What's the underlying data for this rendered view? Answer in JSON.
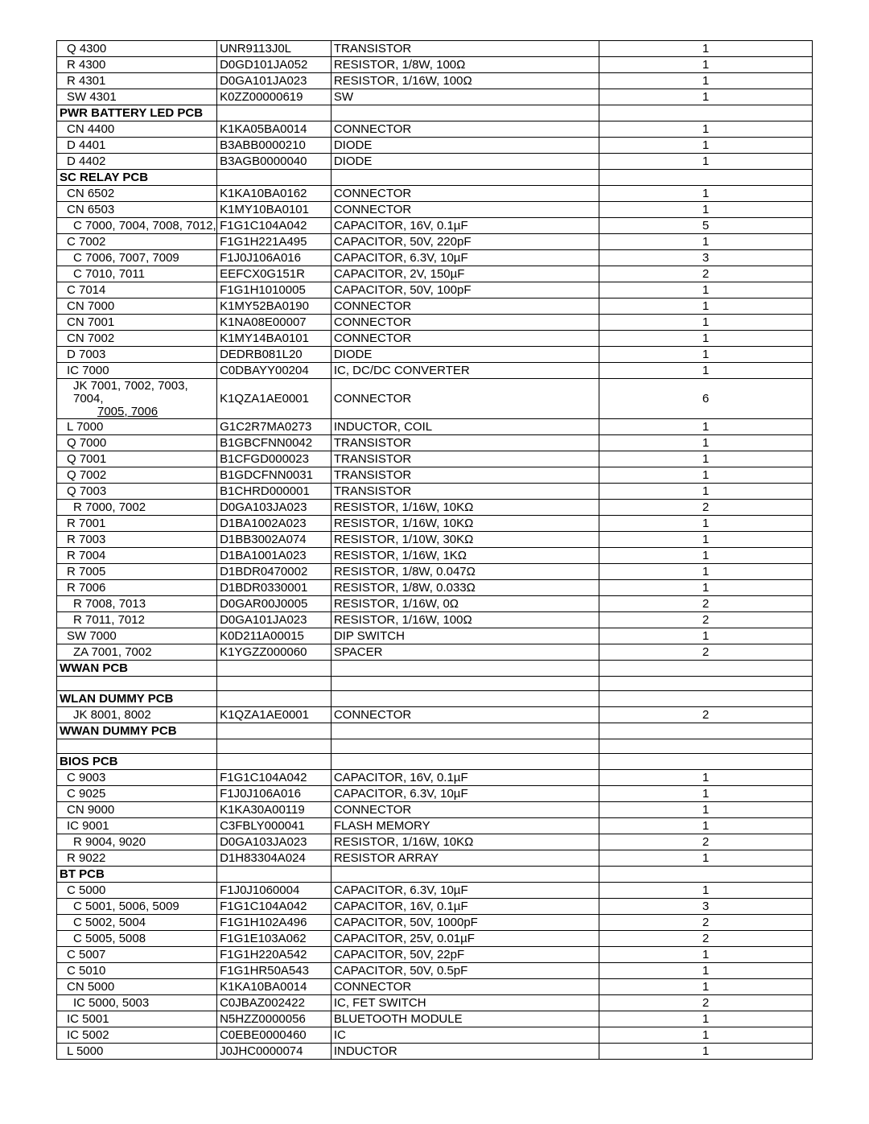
{
  "table": {
    "border_color": "#000000",
    "background_color": "#ffffff",
    "font_size": 15,
    "rows": [
      {
        "style": "part",
        "ref": "Q 4300",
        "pn": "UNR9113J0L",
        "desc": "TRANSISTOR",
        "qty": "1"
      },
      {
        "style": "part",
        "ref": "R 4300",
        "pn": "D0GD101JA052",
        "desc": "RESISTOR,  1/8W, 100Ω",
        "qty": "1"
      },
      {
        "style": "part",
        "ref": "R 4301",
        "pn": "D0GA101JA023",
        "desc": "RESISTOR,  1/16W, 100Ω",
        "qty": "1"
      },
      {
        "style": "part",
        "ref": "SW 4301",
        "pn": "K0ZZ00000619",
        "desc": "SW",
        "qty": "1"
      },
      {
        "style": "section",
        "ref": "PWR BATTERY LED PCB",
        "pn": "",
        "desc": "",
        "qty": ""
      },
      {
        "style": "part",
        "ref": "CN 4400",
        "pn": "K1KA05BA0014",
        "desc": "CONNECTOR",
        "qty": "1"
      },
      {
        "style": "part",
        "ref": "D 4401",
        "pn": "B3ABB0000210",
        "desc": "DIODE",
        "qty": "1"
      },
      {
        "style": "part",
        "ref": "D 4402",
        "pn": "B3AGB0000040",
        "desc": "DIODE",
        "qty": "1"
      },
      {
        "style": "section",
        "ref": "SC RELAY PCB",
        "pn": "",
        "desc": "",
        "qty": ""
      },
      {
        "style": "part",
        "ref": "CN 6502",
        "pn": "K1KA10BA0162",
        "desc": "CONNECTOR",
        "qty": "1"
      },
      {
        "style": "part",
        "ref": "CN 6503",
        "pn": "K1MY10BA0101",
        "desc": "CONNECTOR",
        "qty": "1"
      },
      {
        "style": "subpart",
        "ref": "C  7000, 7004, 7008, 7012,",
        "pn": "F1G1C104A042",
        "desc": "CAPACITOR, 16V, 0.1µF",
        "qty": "5"
      },
      {
        "style": "part",
        "ref": "C 7002",
        "pn": "F1G1H221A495",
        "desc": "CAPACITOR, 50V, 220pF",
        "qty": "1"
      },
      {
        "style": "subpart",
        "ref": "C  7006, 7007, 7009",
        "pn": "F1J0J106A016",
        "desc": "CAPACITOR, 6.3V, 10µF",
        "qty": "3"
      },
      {
        "style": "subpart",
        "ref": "C  7010, 7011",
        "pn": "EEFCX0G151R",
        "desc": "CAPACITOR, 2V, 150µF",
        "qty": "2"
      },
      {
        "style": "part",
        "ref": "C 7014",
        "pn": "F1G1H1010005",
        "desc": "CAPACITOR, 50V, 100pF",
        "qty": "1"
      },
      {
        "style": "part",
        "ref": "CN 7000",
        "pn": "K1MY52BA0190",
        "desc": "CONNECTOR",
        "qty": "1"
      },
      {
        "style": "part",
        "ref": "CN 7001",
        "pn": "K1NA08E00007",
        "desc": "CONNECTOR",
        "qty": "1"
      },
      {
        "style": "part",
        "ref": "CN 7002",
        "pn": "K1MY14BA0101",
        "desc": "CONNECTOR",
        "qty": "1"
      },
      {
        "style": "part",
        "ref": "D 7003",
        "pn": "DEDRB081L20",
        "desc": "DIODE",
        "qty": "1"
      },
      {
        "style": "part",
        "ref": "IC 7000",
        "pn": "C0DBAYY00204",
        "desc": "IC, DC/DC CONVERTER",
        "qty": "1"
      },
      {
        "style": "subpart",
        "ref": "JK  7001, 7002, 7003, 7004,",
        "ref2": "7005, 7006",
        "pn": "K1QZA1AE0001",
        "desc": "CONNECTOR",
        "qty": "6",
        "twoLine": true
      },
      {
        "style": "part",
        "ref": "L 7000",
        "pn": "G1C2R7MA0273",
        "desc": "INDUCTOR, COIL",
        "qty": "1"
      },
      {
        "style": "part",
        "ref": "Q 7000",
        "pn": "B1GBCFNN0042",
        "desc": "TRANSISTOR",
        "qty": "1"
      },
      {
        "style": "part",
        "ref": "Q 7001",
        "pn": "B1CFGD000023",
        "desc": "TRANSISTOR",
        "qty": "1"
      },
      {
        "style": "part",
        "ref": "Q 7002",
        "pn": "B1GDCFNN0031",
        "desc": "TRANSISTOR",
        "qty": "1"
      },
      {
        "style": "part",
        "ref": "Q 7003",
        "pn": "B1CHRD000001",
        "desc": "TRANSISTOR",
        "qty": "1"
      },
      {
        "style": "subpart",
        "ref": "R  7000, 7002",
        "pn": "D0GA103JA023",
        "desc": "RESISTOR,  1/16W, 10KΩ",
        "qty": "2"
      },
      {
        "style": "part",
        "ref": "R 7001",
        "pn": "D1BA1002A023",
        "desc": "RESISTOR,  1/16W, 10KΩ",
        "qty": "1"
      },
      {
        "style": "part",
        "ref": "R 7003",
        "pn": "D1BB3002A074",
        "desc": "RESISTOR,  1/10W, 30KΩ",
        "qty": "1"
      },
      {
        "style": "part",
        "ref": "R 7004",
        "pn": "D1BA1001A023",
        "desc": "RESISTOR,  1/16W, 1KΩ",
        "qty": "1"
      },
      {
        "style": "part",
        "ref": "R 7005",
        "pn": "D1BDR0470002",
        "desc": "RESISTOR, 1/8W, 0.047Ω",
        "qty": "1"
      },
      {
        "style": "part",
        "ref": "R 7006",
        "pn": "D1BDR0330001",
        "desc": "RESISTOR, 1/8W, 0.033Ω",
        "qty": "1"
      },
      {
        "style": "subpart",
        "ref": "R  7008, 7013",
        "pn": "D0GAR00J0005",
        "desc": "RESISTOR,  1/16W, 0Ω",
        "qty": "2"
      },
      {
        "style": "subpart",
        "ref": "R  7011, 7012",
        "pn": "D0GA101JA023",
        "desc": "RESISTOR,  1/16W, 100Ω",
        "qty": "2"
      },
      {
        "style": "part",
        "ref": "SW 7000",
        "pn": "K0D211A00015",
        "desc": "DIP SWITCH",
        "qty": "1"
      },
      {
        "style": "subpart",
        "ref": "ZA  7001, 7002",
        "pn": "K1YGZZ000060",
        "desc": "SPACER",
        "qty": "2"
      },
      {
        "style": "section",
        "ref": "WWAN PCB",
        "pn": "",
        "desc": "",
        "qty": ""
      },
      {
        "style": "part",
        "ref": "",
        "pn": "",
        "desc": "",
        "qty": ""
      },
      {
        "style": "section",
        "ref": "WLAN DUMMY PCB",
        "pn": "",
        "desc": "",
        "qty": ""
      },
      {
        "style": "subpart",
        "ref": "JK  8001, 8002",
        "pn": "K1QZA1AE0001",
        "desc": "CONNECTOR",
        "qty": "2"
      },
      {
        "style": "section",
        "ref": "WWAN DUMMY PCB",
        "pn": "",
        "desc": "",
        "qty": ""
      },
      {
        "style": "part",
        "ref": "",
        "pn": "",
        "desc": "",
        "qty": ""
      },
      {
        "style": "section",
        "ref": "BIOS PCB",
        "pn": "",
        "desc": "",
        "qty": ""
      },
      {
        "style": "part",
        "ref": "C 9003",
        "pn": "F1G1C104A042",
        "desc": "CAPACITOR, 16V, 0.1µF",
        "qty": "1"
      },
      {
        "style": "part",
        "ref": "C 9025",
        "pn": "F1J0J106A016",
        "desc": "CAPACITOR, 6.3V, 10µF",
        "qty": "1"
      },
      {
        "style": "part",
        "ref": "CN 9000",
        "pn": "K1KA30A00119",
        "desc": "CONNECTOR",
        "qty": "1"
      },
      {
        "style": "part",
        "ref": "IC 9001",
        "pn": "C3FBLY000041",
        "desc": "FLASH MEMORY",
        "qty": "1"
      },
      {
        "style": "subpart",
        "ref": "R  9004, 9020",
        "pn": "D0GA103JA023",
        "desc": "RESISTOR,  1/16W, 10KΩ",
        "qty": "2"
      },
      {
        "style": "part",
        "ref": "R 9022",
        "pn": "D1H83304A024",
        "desc": "RESISTOR ARRAY",
        "qty": "1"
      },
      {
        "style": "section",
        "ref": "BT PCB",
        "pn": "",
        "desc": "",
        "qty": ""
      },
      {
        "style": "part",
        "ref": "C 5000",
        "pn": "F1J0J1060004",
        "desc": "CAPACITOR, 6.3V, 10µF",
        "qty": "1"
      },
      {
        "style": "subpart",
        "ref": "C  5001, 5006, 5009",
        "pn": "F1G1C104A042",
        "desc": "CAPACITOR, 16V, 0.1µF",
        "qty": "3"
      },
      {
        "style": "subpart",
        "ref": "C  5002, 5004",
        "pn": "F1G1H102A496",
        "desc": "CAPACITOR, 50V, 1000pF",
        "qty": "2"
      },
      {
        "style": "subpart",
        "ref": "C  5005, 5008",
        "pn": "F1G1E103A062",
        "desc": "CAPACITOR, 25V, 0.01µF",
        "qty": "2"
      },
      {
        "style": "part",
        "ref": "C 5007",
        "pn": "F1G1H220A542",
        "desc": "CAPACITOR, 50V, 22pF",
        "qty": "1"
      },
      {
        "style": "part",
        "ref": "C 5010",
        "pn": "F1G1HR50A543",
        "desc": "CAPACITOR, 50V, 0.5pF",
        "qty": "1"
      },
      {
        "style": "part",
        "ref": "CN 5000",
        "pn": "K1KA10BA0014",
        "desc": "CONNECTOR",
        "qty": "1"
      },
      {
        "style": "subpart",
        "ref": "IC  5000, 5003",
        "pn": "C0JBAZ002422",
        "desc": "IC, FET SWITCH",
        "qty": "2"
      },
      {
        "style": "part",
        "ref": "IC 5001",
        "pn": "N5HZZ0000056",
        "desc": "BLUETOOTH MODULE",
        "qty": "1"
      },
      {
        "style": "part",
        "ref": "IC 5002",
        "pn": "C0EBE0000460",
        "desc": "IC",
        "qty": "1"
      },
      {
        "style": "part",
        "ref": "L 5000",
        "pn": "J0JHC0000074",
        "desc": "INDUCTOR",
        "qty": "1"
      }
    ]
  }
}
